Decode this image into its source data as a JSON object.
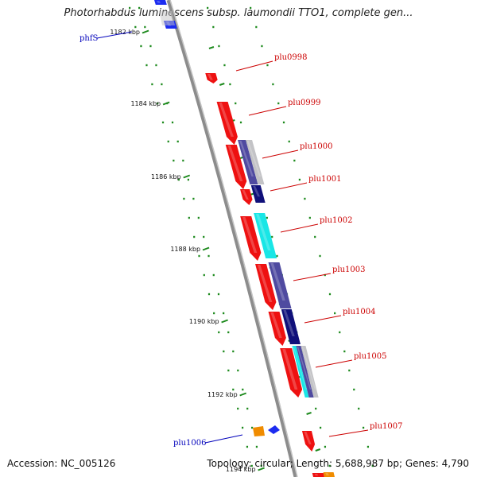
{
  "title": "Photorhabdus luminescens subsp. laumondii TTO1, complete gen...",
  "footer": {
    "accession": "Accession: NC_005126",
    "genome_info": "Topology: circular; Length: 5,688,987 bp; Genes: 4,790"
  },
  "colors": {
    "backbone": "#8c8c8c",
    "red_gene": "#ee1111",
    "navy_gene": "#10107a",
    "slate_gene": "#4f4aa0",
    "cyan_gene": "#19e6e6",
    "gray_gene": "#c3c3c6",
    "orange_gene": "#f08c00",
    "blue_gene": "#1c2cf0",
    "red_label": "#cc0000",
    "blue_label": "#0000bb",
    "tick_green": "#1d8a1d"
  },
  "ruler": [
    {
      "label": "1182 kbp"
    },
    {
      "label": "1184 kbp"
    },
    {
      "label": "1186 kbp"
    },
    {
      "label": "1188 kbp"
    },
    {
      "label": "1190 kbp"
    },
    {
      "label": "1192 kbp"
    },
    {
      "label": "1194 kbp"
    }
  ],
  "gene_labels": [
    {
      "text": "phfS",
      "color": "blue"
    },
    {
      "text": "plu0998",
      "color": "red"
    },
    {
      "text": "plu0999",
      "color": "red"
    },
    {
      "text": "plu1000",
      "color": "red"
    },
    {
      "text": "plu1001",
      "color": "red"
    },
    {
      "text": "plu1002",
      "color": "red"
    },
    {
      "text": "plu1003",
      "color": "red"
    },
    {
      "text": "plu1004",
      "color": "red"
    },
    {
      "text": "plu1005",
      "color": "red"
    },
    {
      "text": "plu1006",
      "color": "blue"
    },
    {
      "text": "plu1007",
      "color": "red"
    }
  ]
}
